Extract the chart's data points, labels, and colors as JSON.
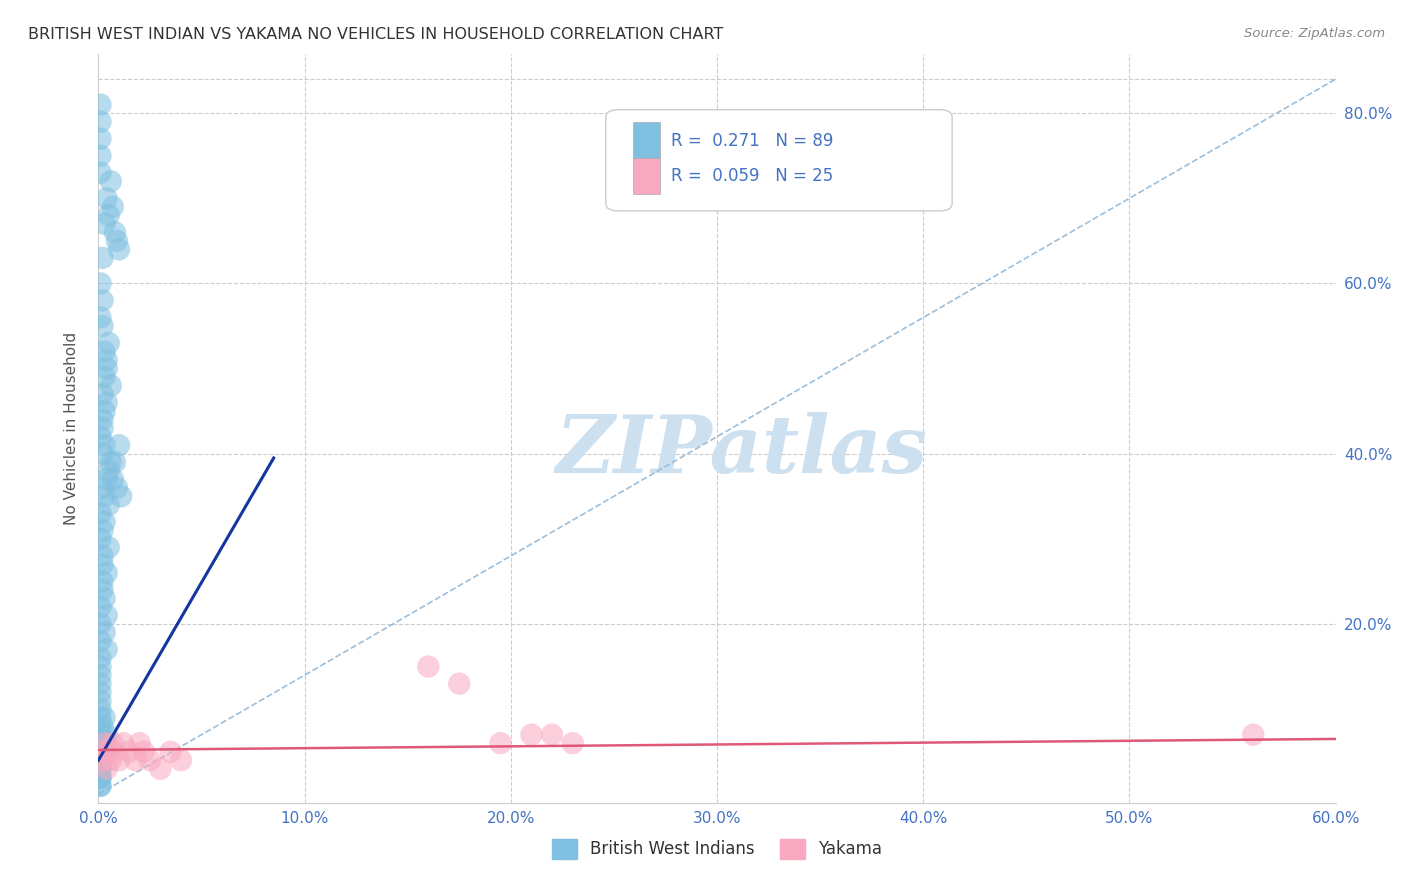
{
  "title": "BRITISH WEST INDIAN VS YAKAMA NO VEHICLES IN HOUSEHOLD CORRELATION CHART",
  "source": "Source: ZipAtlas.com",
  "ylabel": "No Vehicles in Household",
  "xlim": [
    0,
    0.6
  ],
  "ylim": [
    -0.01,
    0.87
  ],
  "xticks": [
    0.0,
    0.1,
    0.2,
    0.3,
    0.4,
    0.5,
    0.6
  ],
  "yticks": [
    0.0,
    0.2,
    0.4,
    0.6,
    0.8
  ],
  "xtick_labels": [
    "0.0%",
    "10.0%",
    "20.0%",
    "30.0%",
    "40.0%",
    "50.0%",
    "60.0%"
  ],
  "ytick_labels_right": [
    "",
    "20.0%",
    "40.0%",
    "60.0%",
    "80.0%"
  ],
  "blue_R": 0.271,
  "blue_N": 89,
  "pink_R": 0.059,
  "pink_N": 25,
  "blue_color": "#7fbfdf",
  "pink_color": "#f8a8bf",
  "blue_line_color": "#1535a0",
  "pink_line_color": "#e05878",
  "ref_line_color": "#90b8d8",
  "watermark_color": "#cce0f0",
  "blue_scatter_x": [
    0.002,
    0.003,
    0.004,
    0.005,
    0.006,
    0.007,
    0.008,
    0.009,
    0.01,
    0.002,
    0.003,
    0.004,
    0.005,
    0.006,
    0.001,
    0.002,
    0.001,
    0.001,
    0.002,
    0.003,
    0.004,
    0.005,
    0.002,
    0.003,
    0.004,
    0.001,
    0.002,
    0.003,
    0.004,
    0.001,
    0.002,
    0.001,
    0.001,
    0.001,
    0.001,
    0.001,
    0.001,
    0.001,
    0.001,
    0.001,
    0.001,
    0.001,
    0.001,
    0.001,
    0.001,
    0.001,
    0.001,
    0.001,
    0.001,
    0.002,
    0.002,
    0.002,
    0.002,
    0.003,
    0.003,
    0.004,
    0.004,
    0.005,
    0.005,
    0.006,
    0.001,
    0.001,
    0.001,
    0.001,
    0.001,
    0.002,
    0.002,
    0.003,
    0.003,
    0.004,
    0.001,
    0.001,
    0.001,
    0.002,
    0.001,
    0.001,
    0.001,
    0.001,
    0.001,
    0.001,
    0.007,
    0.008,
    0.009,
    0.01,
    0.011,
    0.002,
    0.003,
    0.003,
    0.004
  ],
  "blue_scatter_y": [
    0.63,
    0.67,
    0.7,
    0.68,
    0.72,
    0.69,
    0.66,
    0.65,
    0.64,
    0.55,
    0.52,
    0.5,
    0.53,
    0.48,
    0.56,
    0.58,
    0.6,
    0.42,
    0.44,
    0.45,
    0.46,
    0.38,
    0.4,
    0.35,
    0.37,
    0.3,
    0.28,
    0.32,
    0.26,
    0.22,
    0.25,
    0.2,
    0.18,
    0.16,
    0.15,
    0.14,
    0.13,
    0.12,
    0.11,
    0.1,
    0.08,
    0.07,
    0.06,
    0.05,
    0.09,
    0.04,
    0.03,
    0.02,
    0.33,
    0.36,
    0.24,
    0.27,
    0.31,
    0.19,
    0.23,
    0.17,
    0.21,
    0.29,
    0.34,
    0.39,
    0.73,
    0.75,
    0.77,
    0.79,
    0.81,
    0.47,
    0.43,
    0.41,
    0.49,
    0.51,
    0.06,
    0.04,
    0.03,
    0.05,
    0.07,
    0.01,
    0.02,
    0.03,
    0.01,
    0.02,
    0.37,
    0.39,
    0.36,
    0.41,
    0.35,
    0.08,
    0.09,
    0.06,
    0.07
  ],
  "pink_scatter_x": [
    0.001,
    0.002,
    0.003,
    0.004,
    0.005,
    0.006,
    0.007,
    0.008,
    0.01,
    0.012,
    0.015,
    0.018,
    0.02,
    0.022,
    0.025,
    0.03,
    0.035,
    0.04,
    0.16,
    0.175,
    0.195,
    0.21,
    0.22,
    0.23,
    0.56
  ],
  "pink_scatter_y": [
    0.05,
    0.04,
    0.06,
    0.03,
    0.05,
    0.04,
    0.06,
    0.05,
    0.04,
    0.06,
    0.05,
    0.04,
    0.06,
    0.05,
    0.04,
    0.03,
    0.05,
    0.04,
    0.15,
    0.13,
    0.06,
    0.07,
    0.07,
    0.06,
    0.07
  ],
  "blue_line_x": [
    0.0,
    0.085
  ],
  "blue_line_y": [
    0.04,
    0.395
  ],
  "pink_line_x": [
    0.0,
    0.6
  ],
  "pink_line_y": [
    0.052,
    0.065
  ],
  "ref_line_x": [
    0.0,
    0.6
  ],
  "ref_line_y": [
    0.0,
    0.84
  ]
}
